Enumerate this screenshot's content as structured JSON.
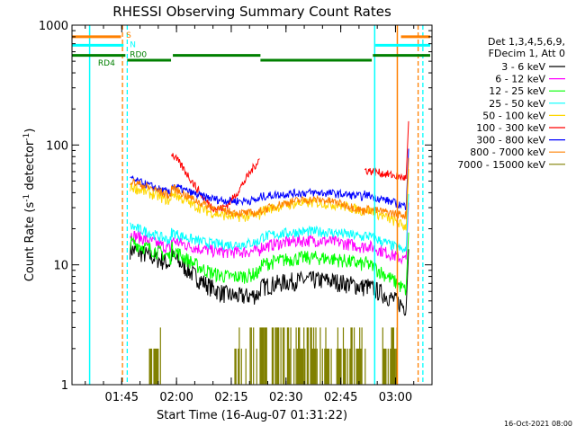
{
  "chart_data": {
    "type": "line",
    "title": "RHESSI Observing Summary Count Rates",
    "xlabel": "Start Time (16-Aug-07 01:31:22)",
    "ylabel_main": "Count Rate (s",
    "ylabel_sup1": "-1",
    "ylabel_mid": " detector",
    "ylabel_sup2": "-1",
    "ylabel_end": ")",
    "y_scale": "log",
    "ylim": [
      1,
      1000
    ],
    "xlim": [
      "01:31:22",
      "03:10:00"
    ],
    "y_ticks": [
      {
        "value": 1,
        "label": "1"
      },
      {
        "value": 10,
        "label": "10"
      },
      {
        "value": 100,
        "label": "100"
      },
      {
        "value": 1000,
        "label": "1000"
      }
    ],
    "x_ticks": [
      {
        "value": "01:45",
        "label": "01:45"
      },
      {
        "value": "02:00",
        "label": "02:00"
      },
      {
        "value": "02:15",
        "label": "02:15"
      },
      {
        "value": "02:30",
        "label": "02:30"
      },
      {
        "value": "02:45",
        "label": "02:45"
      },
      {
        "value": "03:00",
        "label": "03:00"
      }
    ],
    "legend_position": "right",
    "legend_header": [
      "Det 1,3,4,5,6,9,",
      "FDecim 1, Att 0"
    ],
    "series": [
      {
        "name": "3 - 6 keV",
        "color": "#000000",
        "base": 4.6,
        "dawn": 13.5,
        "mid": 7.5,
        "pre": 6.5,
        "end": 4.5,
        "noise": 0.09
      },
      {
        "name": "6 - 12 keV",
        "color": "#ff00ff",
        "base": 12,
        "dawn": 18,
        "mid": 16,
        "pre": 14,
        "end": 11,
        "noise": 0.06
      },
      {
        "name": "12 - 25 keV",
        "color": "#00ff00",
        "base": 6.6,
        "dawn": 15.5,
        "mid": 11.5,
        "pre": 10,
        "end": 6.2,
        "noise": 0.07
      },
      {
        "name": "25 - 50 keV",
        "color": "#00ffff",
        "base": 13.5,
        "dawn": 21,
        "mid": 19,
        "pre": 17,
        "end": 13,
        "noise": 0.05
      },
      {
        "name": "50 - 100 keV",
        "color": "#ffd700",
        "base": 23,
        "dawn": 45,
        "mid": 33,
        "pre": 28,
        "end": 21,
        "noise": 0.05
      },
      {
        "name": "100 - 300 keV",
        "color": "#ff0000",
        "base": 52,
        "dawn": 0,
        "mid": 0,
        "pre": 62,
        "end": 52,
        "noise": 0.04
      },
      {
        "name": "300 - 800 keV",
        "color": "#0000ff",
        "base": 32,
        "dawn": 52,
        "mid": 40,
        "pre": 37,
        "end": 31,
        "noise": 0.04
      },
      {
        "name": "800 - 7000 keV",
        "color": "#ff8000",
        "base": 26,
        "dawn": 50,
        "mid": 35,
        "pre": 28,
        "end": 26,
        "noise": 0.04
      },
      {
        "name": "7000 - 15000 keV",
        "color": "#808000",
        "base": 1,
        "dawn": 3,
        "mid": 2,
        "pre": 2,
        "end": 1,
        "noise": 0
      }
    ],
    "flags": [
      {
        "label": "S",
        "color": "#ff8000",
        "level": 800
      },
      {
        "label": "N",
        "color": "#00ffff",
        "level": 680
      },
      {
        "label": "RD0",
        "color": "#008000",
        "level": 560
      },
      {
        "label": "RD4",
        "color": "#008000",
        "level": 560
      }
    ]
  },
  "footer": {
    "timestamp": "16-Oct-2021 08:00"
  }
}
